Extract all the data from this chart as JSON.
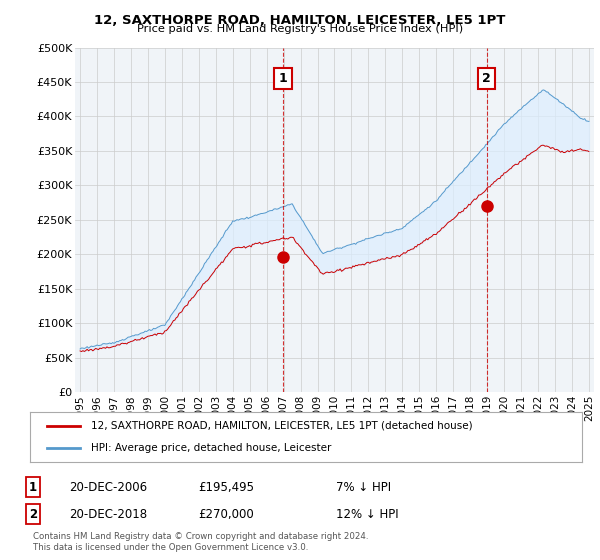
{
  "title": "12, SAXTHORPE ROAD, HAMILTON, LEICESTER, LE5 1PT",
  "subtitle": "Price paid vs. HM Land Registry's House Price Index (HPI)",
  "ylabel_ticks": [
    "£0",
    "£50K",
    "£100K",
    "£150K",
    "£200K",
    "£250K",
    "£300K",
    "£350K",
    "£400K",
    "£450K",
    "£500K"
  ],
  "ytick_values": [
    0,
    50000,
    100000,
    150000,
    200000,
    250000,
    300000,
    350000,
    400000,
    450000,
    500000
  ],
  "ylim": [
    0,
    500000
  ],
  "xlim_start": 1994.7,
  "xlim_end": 2025.3,
  "sale1_x": 2006.97,
  "sale1_y": 195495,
  "sale2_x": 2018.97,
  "sale2_y": 270000,
  "legend_line1": "12, SAXTHORPE ROAD, HAMILTON, LEICESTER, LE5 1PT (detached house)",
  "legend_line2": "HPI: Average price, detached house, Leicester",
  "footer": "Contains HM Land Registry data © Crown copyright and database right 2024.\nThis data is licensed under the Open Government Licence v3.0.",
  "line_color_red": "#cc0000",
  "line_color_blue": "#5599cc",
  "fill_color": "#ddeeff",
  "bg_color": "#f0f4f8",
  "grid_color": "#cccccc",
  "box_color": "#cc0000",
  "xtick_years": [
    1995,
    1996,
    1997,
    1998,
    1999,
    2000,
    2001,
    2002,
    2003,
    2004,
    2005,
    2006,
    2007,
    2008,
    2009,
    2010,
    2011,
    2012,
    2013,
    2014,
    2015,
    2016,
    2017,
    2018,
    2019,
    2020,
    2021,
    2022,
    2023,
    2024,
    2025
  ]
}
